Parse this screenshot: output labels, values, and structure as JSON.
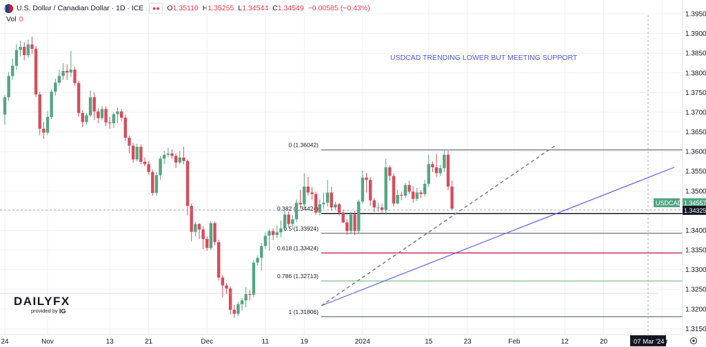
{
  "header": {
    "title": "U.S. Dollar / Canadian Dollar · 1D · ICE",
    "o_label": "O",
    "o": "1.35110",
    "h_label": "H",
    "h": "1.35255",
    "l_label": "L",
    "l": "1.34544",
    "c_label": "C",
    "c": "1.34549",
    "change": "−0.00585 (−0.43%)",
    "vol_label": "Vol",
    "vol_value": "0"
  },
  "logo": {
    "text": "DAILYFX",
    "sub": "provided by",
    "sub_brand": "IG"
  },
  "colors": {
    "up": "#53a583",
    "down": "#d84b5b",
    "trend": "#5b62e8",
    "grid": "#eef0f3",
    "annot": "#4a56e2"
  },
  "chart_data": {
    "type": "candlestick",
    "title": "USDCAD TRENDING LOWER BUT MEETING SUPPORT",
    "symbol": "USDCAD",
    "ylim": [
      1.3135,
      1.3985
    ],
    "y_ticks": [
      "1.31500",
      "1.32000",
      "1.32500",
      "1.33000",
      "1.33500",
      "1.34000",
      "1.34500",
      "1.35000",
      "1.35500",
      "1.36000",
      "1.36500",
      "1.37000",
      "1.37500",
      "1.38000",
      "1.38500",
      "1.39000",
      "1.39500"
    ],
    "x_ticks": [
      "24",
      "Nov",
      "13",
      "21",
      "Dec",
      "11",
      "19",
      "2024",
      "15",
      "23",
      "Feb",
      "12",
      "20",
      "Mar"
    ],
    "x_tick_idx": [
      0,
      11,
      27,
      37,
      52,
      67,
      77,
      92,
      109,
      119,
      131,
      144,
      154,
      169
    ],
    "cursor_date": "07 Mar '24",
    "last_price_label": "USDCAD",
    "last_price": "1.34557",
    "crosshair_price": "1.34325",
    "fib_levels": [
      {
        "label": "0 (1.36042)",
        "value": 1.36042,
        "color": "#787b86"
      },
      {
        "label": "0.382 (1.34424)",
        "value": 1.34424,
        "color": "#131722"
      },
      {
        "label": "0.5 (1.33924)",
        "value": 1.33924,
        "color": "#787b86"
      },
      {
        "label": "0.618 (1.33424)",
        "value": 1.33424,
        "color": "#c2185b"
      },
      {
        "label": "0.786 (1.32713)",
        "value": 1.32713,
        "color": "#81c995"
      },
      {
        "label": "1 (1.31806)",
        "value": 1.31806,
        "color": "#787b86"
      }
    ],
    "ohlc": [
      [
        1.3694,
        1.3738,
        1.3668,
        1.3744
      ],
      [
        1.3738,
        1.3792,
        1.3728,
        1.3802
      ],
      [
        1.3792,
        1.3818,
        1.3782,
        1.3836
      ],
      [
        1.3818,
        1.3858,
        1.3808,
        1.3874
      ],
      [
        1.3858,
        1.3866,
        1.3842,
        1.3882
      ],
      [
        1.3866,
        1.3845,
        1.3832,
        1.3878
      ],
      [
        1.3845,
        1.3872,
        1.3838,
        1.3884
      ],
      [
        1.3872,
        1.3861,
        1.3848,
        1.3892
      ],
      [
        1.3861,
        1.3745,
        1.3738,
        1.3868
      ],
      [
        1.3745,
        1.3658,
        1.3641,
        1.3752
      ],
      [
        1.3658,
        1.3648,
        1.3632,
        1.3675
      ],
      [
        1.3648,
        1.3688,
        1.3642,
        1.3702
      ],
      [
        1.3688,
        1.3752,
        1.3682,
        1.3758
      ],
      [
        1.3752,
        1.3775,
        1.3742,
        1.3785
      ],
      [
        1.3775,
        1.3792,
        1.3768,
        1.3808
      ],
      [
        1.3792,
        1.3805,
        1.3782,
        1.3825
      ],
      [
        1.3805,
        1.3801,
        1.3782,
        1.3822
      ],
      [
        1.3801,
        1.3808,
        1.379,
        1.3856
      ],
      [
        1.3808,
        1.3774,
        1.3768,
        1.3815
      ],
      [
        1.3774,
        1.3698,
        1.3688,
        1.378
      ],
      [
        1.3698,
        1.3675,
        1.3662,
        1.3705
      ],
      [
        1.3675,
        1.3692,
        1.3668,
        1.3698
      ],
      [
        1.3692,
        1.3738,
        1.3688,
        1.3755
      ],
      [
        1.3738,
        1.3702,
        1.368,
        1.375
      ],
      [
        1.3702,
        1.3685,
        1.3672,
        1.371
      ],
      [
        1.3685,
        1.3708,
        1.368,
        1.3716
      ],
      [
        1.3708,
        1.3674,
        1.3665,
        1.3715
      ],
      [
        1.3674,
        1.3672,
        1.3658,
        1.3688
      ],
      [
        1.3672,
        1.3695,
        1.366,
        1.37
      ],
      [
        1.3695,
        1.3702,
        1.3672,
        1.3712
      ],
      [
        1.3702,
        1.3686,
        1.3678,
        1.3708
      ],
      [
        1.3686,
        1.3635,
        1.3628,
        1.3694
      ],
      [
        1.3635,
        1.3615,
        1.3596,
        1.3641
      ],
      [
        1.3615,
        1.358,
        1.3572,
        1.3622
      ],
      [
        1.358,
        1.3612,
        1.3575,
        1.362
      ],
      [
        1.3612,
        1.3574,
        1.3568,
        1.3618
      ],
      [
        1.3574,
        1.3568,
        1.3562,
        1.3585
      ],
      [
        1.3568,
        1.3548,
        1.354,
        1.3576
      ],
      [
        1.3548,
        1.3495,
        1.3488,
        1.3554
      ],
      [
        1.3495,
        1.354,
        1.3488,
        1.3548
      ],
      [
        1.354,
        1.3582,
        1.3528,
        1.3589
      ],
      [
        1.3582,
        1.3592,
        1.3568,
        1.3602
      ],
      [
        1.3592,
        1.3595,
        1.3585,
        1.361
      ],
      [
        1.3595,
        1.3589,
        1.3582,
        1.3606
      ],
      [
        1.3589,
        1.3572,
        1.3558,
        1.3596
      ],
      [
        1.3572,
        1.3585,
        1.3568,
        1.3602
      ],
      [
        1.3585,
        1.3576,
        1.3568,
        1.3612
      ],
      [
        1.3576,
        1.3462,
        1.3438,
        1.358
      ],
      [
        1.3462,
        1.3396,
        1.3372,
        1.3468
      ],
      [
        1.3396,
        1.3416,
        1.3385,
        1.3421
      ],
      [
        1.3416,
        1.3402,
        1.3378,
        1.3418
      ],
      [
        1.3402,
        1.3378,
        1.3352,
        1.341
      ],
      [
        1.3378,
        1.3355,
        1.3348,
        1.3386
      ],
      [
        1.3355,
        1.3418,
        1.335,
        1.3424
      ],
      [
        1.3418,
        1.337,
        1.3362,
        1.3422
      ],
      [
        1.337,
        1.328,
        1.3272,
        1.3376
      ],
      [
        1.328,
        1.326,
        1.323,
        1.3286
      ],
      [
        1.326,
        1.3252,
        1.3238,
        1.3266
      ],
      [
        1.3252,
        1.3198,
        1.3186,
        1.3258
      ],
      [
        1.3198,
        1.3188,
        1.3178,
        1.321
      ],
      [
        1.3188,
        1.3212,
        1.3182,
        1.3218
      ],
      [
        1.3212,
        1.3222,
        1.3196,
        1.3228
      ],
      [
        1.3222,
        1.3238,
        1.3204,
        1.3256
      ],
      [
        1.3238,
        1.3236,
        1.3222,
        1.3248
      ],
      [
        1.3236,
        1.3318,
        1.323,
        1.3324
      ],
      [
        1.3318,
        1.333,
        1.331,
        1.3336
      ],
      [
        1.333,
        1.336,
        1.3298,
        1.3368
      ],
      [
        1.336,
        1.3386,
        1.3352,
        1.3395
      ],
      [
        1.3386,
        1.3398,
        1.3348,
        1.3402
      ],
      [
        1.3398,
        1.3388,
        1.3375,
        1.3405
      ],
      [
        1.3388,
        1.3395,
        1.338,
        1.3412
      ],
      [
        1.3395,
        1.3405,
        1.3382,
        1.3425
      ],
      [
        1.3405,
        1.344,
        1.3398,
        1.3452
      ],
      [
        1.344,
        1.3416,
        1.3408,
        1.3448
      ],
      [
        1.3416,
        1.3428,
        1.3402,
        1.3438
      ],
      [
        1.3428,
        1.347,
        1.342,
        1.3478
      ],
      [
        1.347,
        1.3466,
        1.3455,
        1.3502
      ],
      [
        1.3466,
        1.3511,
        1.3456,
        1.3545
      ],
      [
        1.3511,
        1.3496,
        1.3488,
        1.3536
      ],
      [
        1.3496,
        1.3492,
        1.3478,
        1.351
      ],
      [
        1.3492,
        1.3445,
        1.344,
        1.3498
      ],
      [
        1.3445,
        1.3466,
        1.3438,
        1.3478
      ],
      [
        1.3466,
        1.347,
        1.3455,
        1.3496
      ],
      [
        1.347,
        1.3496,
        1.346,
        1.3528
      ],
      [
        1.3496,
        1.3458,
        1.345,
        1.351
      ],
      [
        1.3458,
        1.3466,
        1.3452,
        1.3472
      ],
      [
        1.3466,
        1.3445,
        1.3438,
        1.347
      ],
      [
        1.3445,
        1.342,
        1.3418,
        1.3452
      ],
      [
        1.342,
        1.3398,
        1.3388,
        1.3428
      ],
      [
        1.3398,
        1.344,
        1.339,
        1.3446
      ],
      [
        1.344,
        1.3398,
        1.3388,
        1.345
      ],
      [
        1.3398,
        1.3473,
        1.3392,
        1.3478
      ],
      [
        1.3473,
        1.3534,
        1.3468,
        1.3552
      ],
      [
        1.3534,
        1.3528,
        1.3496,
        1.3546
      ],
      [
        1.3528,
        1.3476,
        1.3462,
        1.3535
      ],
      [
        1.3476,
        1.3458,
        1.3446,
        1.3482
      ],
      [
        1.3458,
        1.3458,
        1.3447,
        1.347
      ],
      [
        1.3458,
        1.3452,
        1.3445,
        1.3468
      ],
      [
        1.3452,
        1.356,
        1.344,
        1.3582
      ],
      [
        1.356,
        1.3538,
        1.3526,
        1.3565
      ],
      [
        1.3538,
        1.3468,
        1.346,
        1.3545
      ],
      [
        1.3468,
        1.349,
        1.3466,
        1.3503
      ],
      [
        1.349,
        1.3488,
        1.3476,
        1.3498
      ],
      [
        1.3488,
        1.3515,
        1.3482,
        1.352
      ],
      [
        1.3515,
        1.3498,
        1.3492,
        1.3526
      ],
      [
        1.3498,
        1.348,
        1.347,
        1.3512
      ],
      [
        1.348,
        1.3496,
        1.3474,
        1.3508
      ],
      [
        1.3496,
        1.3492,
        1.3482,
        1.3502
      ],
      [
        1.3492,
        1.3518,
        1.3486,
        1.3528
      ],
      [
        1.3518,
        1.3568,
        1.351,
        1.3592
      ],
      [
        1.3568,
        1.356,
        1.3548,
        1.3575
      ],
      [
        1.356,
        1.3545,
        1.3536,
        1.3594
      ],
      [
        1.3545,
        1.3558,
        1.3538,
        1.3566
      ],
      [
        1.3558,
        1.3592,
        1.3548,
        1.3603
      ],
      [
        1.3592,
        1.3511,
        1.3502,
        1.3602
      ],
      [
        1.3511,
        1.3455,
        1.3452,
        1.3526
      ]
    ]
  }
}
